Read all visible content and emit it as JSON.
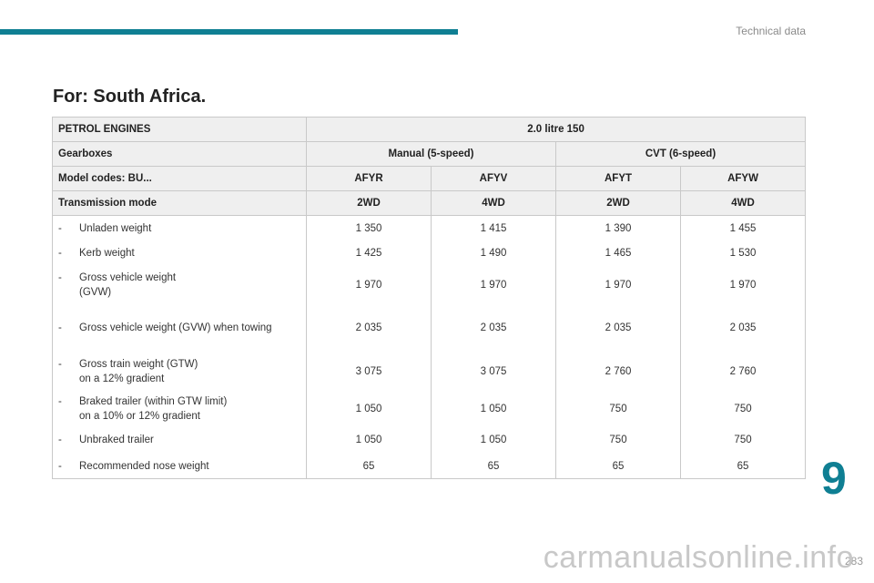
{
  "header": {
    "section_title": "Technical data",
    "accent_color": "#0f7f93"
  },
  "page_heading": "For: South Africa.",
  "table": {
    "engine_label": "PETROL ENGINES",
    "engine_value": "2.0 litre 150",
    "gearbox_label": "Gearboxes",
    "gearboxes": [
      "Manual (5-speed)",
      "CVT (6-speed)"
    ],
    "model_label": "Model codes: BU...",
    "model_codes": [
      "AFYR",
      "AFYV",
      "AFYT",
      "AFYW"
    ],
    "transmission_label": "Transmission mode",
    "transmission_modes": [
      "2WD",
      "4WD",
      "2WD",
      "4WD"
    ],
    "rows": [
      {
        "dash": "-",
        "label": "Unladen weight",
        "values": [
          "1 350",
          "1 415",
          "1 390",
          "1 455"
        ]
      },
      {
        "dash": "-",
        "label": "Kerb weight",
        "values": [
          "1 425",
          "1 490",
          "1 465",
          "1 530"
        ]
      },
      {
        "dash": "-",
        "label": "Gross vehicle weight\n(GVW)",
        "values": [
          "1 970",
          "1 970",
          "1 970",
          "1 970"
        ]
      },
      {
        "dash": "-",
        "label": "Gross vehicle weight (GVW) when towing",
        "values": [
          "2 035",
          "2 035",
          "2 035",
          "2 035"
        ]
      },
      {
        "dash": "-",
        "label": "Gross train weight (GTW)\non a 12% gradient",
        "values": [
          "3 075",
          "3 075",
          "2 760",
          "2 760"
        ]
      },
      {
        "dash": "-",
        "label": "Braked trailer (within GTW limit)\non a 10% or 12% gradient",
        "values": [
          "1 050",
          "1 050",
          "750",
          "750"
        ]
      },
      {
        "dash": "-",
        "label": "Unbraked trailer",
        "values": [
          "1 050",
          "1 050",
          "750",
          "750"
        ]
      },
      {
        "dash": "-",
        "label": "Recommended nose weight",
        "values": [
          "65",
          "65",
          "65",
          "65"
        ]
      }
    ]
  },
  "chapter_number": "9",
  "page_number": "283",
  "watermark": "carmanualsonline.info"
}
